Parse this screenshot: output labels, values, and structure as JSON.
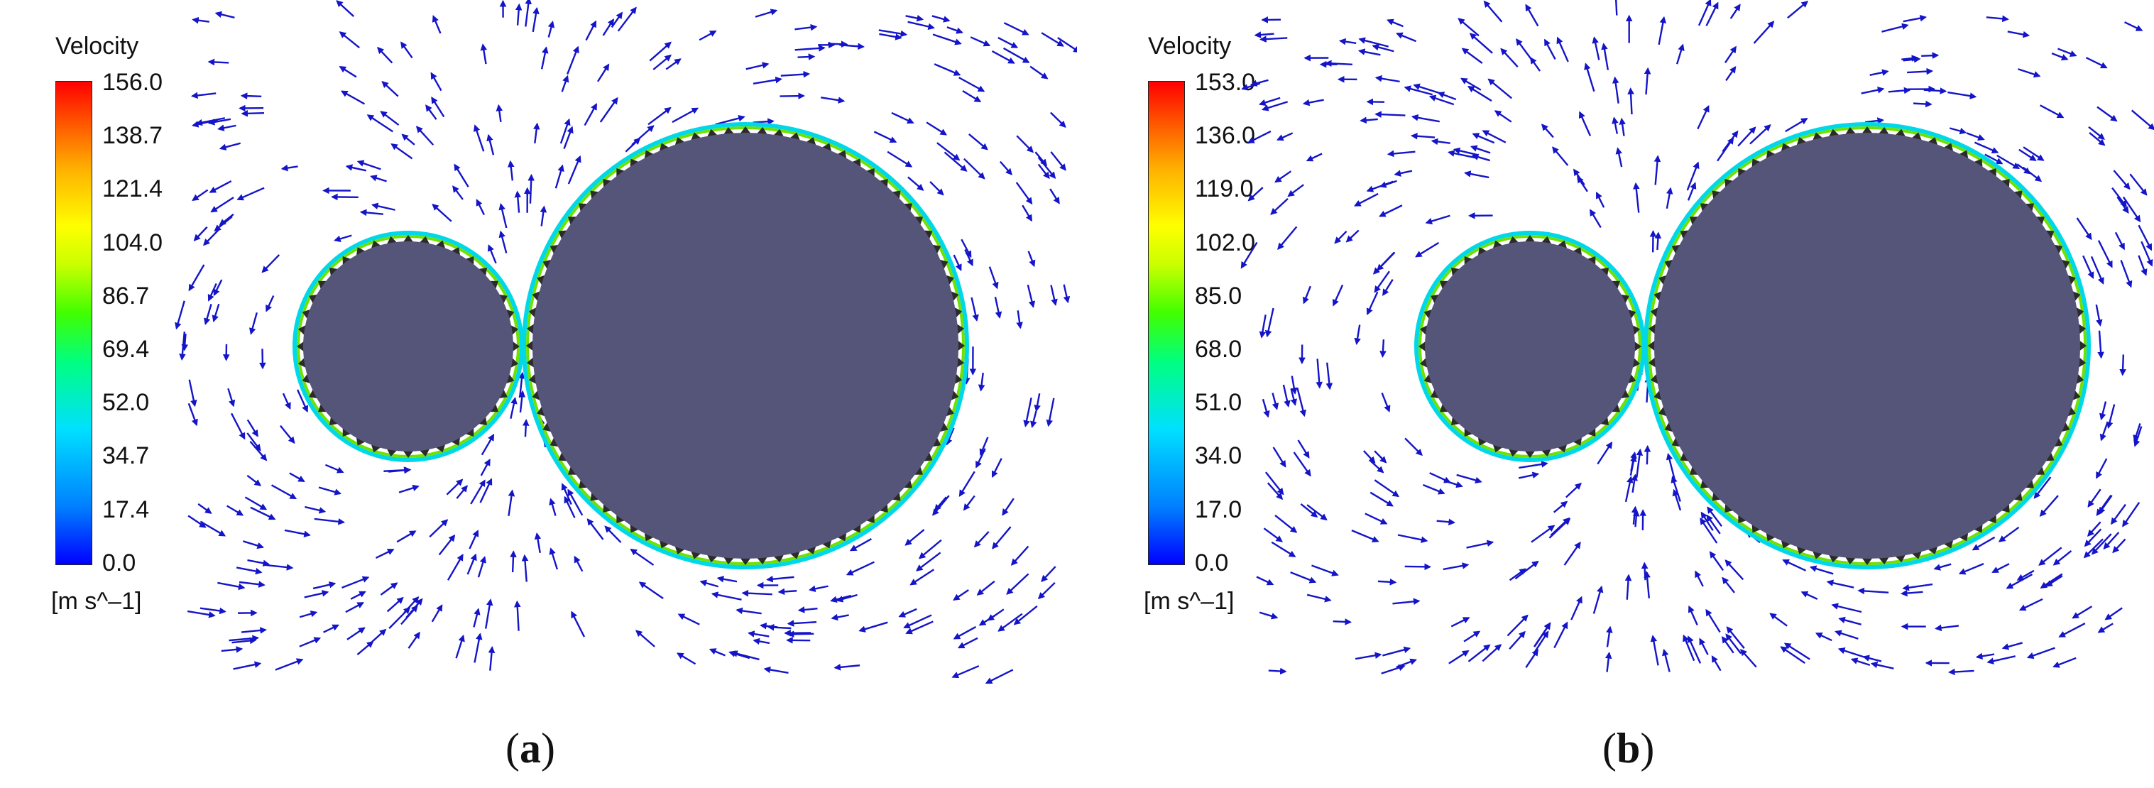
{
  "panels": [
    {
      "id": "a",
      "legend_title": "Velocity",
      "ticks": [
        "156.0",
        "138.7",
        "121.4",
        "104.0",
        "86.7",
        "69.4",
        "52.0",
        "34.7",
        "17.4",
        "0.0"
      ],
      "unit": "[m s^–1]",
      "caption_letter": "a"
    },
    {
      "id": "b",
      "legend_title": "Velocity",
      "ticks": [
        "153.0",
        "136.0",
        "119.0",
        "102.0",
        "85.0",
        "68.0",
        "51.0",
        "34.0",
        "17.0",
        "0.0"
      ],
      "unit": "[m s^–1]",
      "caption_letter": "b"
    }
  ],
  "colors": {
    "gear_fill": "#55557a",
    "tooth": "#2b2b2b",
    "vector": "#1414c8",
    "background": "#ffffff"
  }
}
